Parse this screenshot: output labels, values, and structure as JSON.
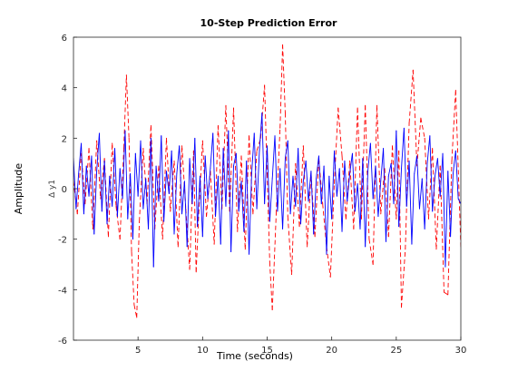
{
  "chart_data": {
    "type": "line",
    "title": "10-Step Prediction Error",
    "xlabel": "Time (seconds)",
    "ylabel": "Amplitude",
    "ylabel_inner": "Δ y1",
    "xlim": [
      0,
      30
    ],
    "ylim": [
      -6,
      6
    ],
    "xticks": [
      5,
      10,
      15,
      20,
      25,
      30
    ],
    "yticks": [
      -6,
      -4,
      -2,
      0,
      2,
      4,
      6
    ],
    "grid": false,
    "legend": "none",
    "series": [
      {
        "color": "#ff0000",
        "style": "dashed",
        "x": [
          0.0,
          0.3,
          0.6,
          0.9,
          1.2,
          1.5,
          1.8,
          2.1,
          2.4,
          2.7,
          3.0,
          3.3,
          3.6,
          3.9,
          4.1,
          4.3,
          4.5,
          4.7,
          4.9,
          5.1,
          5.4,
          5.7,
          6.0,
          6.3,
          6.6,
          6.9,
          7.2,
          7.5,
          7.8,
          8.1,
          8.4,
          8.7,
          9.0,
          9.3,
          9.5,
          9.7,
          10.0,
          10.3,
          10.6,
          10.9,
          11.2,
          11.5,
          11.8,
          12.1,
          12.4,
          12.7,
          13.0,
          13.3,
          13.6,
          13.9,
          14.2,
          14.5,
          14.8,
          15.0,
          15.2,
          15.4,
          15.7,
          16.0,
          16.2,
          16.4,
          16.6,
          16.9,
          17.2,
          17.5,
          17.8,
          18.1,
          18.4,
          18.7,
          19.0,
          19.3,
          19.6,
          19.9,
          20.2,
          20.5,
          20.8,
          21.1,
          21.4,
          21.7,
          22.0,
          22.3,
          22.6,
          22.9,
          23.2,
          23.5,
          23.8,
          24.1,
          24.4,
          24.7,
          25.0,
          25.2,
          25.4,
          25.7,
          26.0,
          26.3,
          26.6,
          26.9,
          27.2,
          27.5,
          27.8,
          28.1,
          28.4,
          28.7,
          29.0,
          29.3,
          29.6,
          30.0
        ],
        "y": [
          0.3,
          -1.0,
          1.4,
          -0.6,
          1.6,
          -1.6,
          1.9,
          -0.4,
          1.2,
          -1.9,
          1.8,
          -0.7,
          -2.0,
          1.6,
          4.5,
          2.0,
          -2.5,
          -4.6,
          -5.1,
          -1.3,
          1.6,
          -0.6,
          2.5,
          -1.6,
          0.9,
          -2.0,
          2.0,
          -0.9,
          1.1,
          -2.3,
          1.7,
          -0.8,
          -3.2,
          1.5,
          -3.3,
          -1.0,
          1.9,
          -1.1,
          0.7,
          -2.2,
          2.5,
          -0.8,
          3.3,
          -0.9,
          3.2,
          -1.7,
          1.3,
          -2.4,
          2.1,
          -1.0,
          1.5,
          2.0,
          4.1,
          0.6,
          -2.9,
          -4.8,
          -1.0,
          2.4,
          5.7,
          3.0,
          -1.1,
          -3.4,
          1.0,
          -1.5,
          1.7,
          -2.3,
          0.6,
          -1.9,
          1.2,
          -0.6,
          -2.3,
          -3.5,
          0.2,
          3.2,
          1.3,
          -1.2,
          1.1,
          -1.6,
          3.2,
          -1.2,
          3.3,
          -2.0,
          -3.0,
          3.3,
          -1.0,
          0.8,
          -1.9,
          1.7,
          -1.2,
          1.5,
          -4.7,
          -2.4,
          2.6,
          4.7,
          0.9,
          2.8,
          2.0,
          -1.2,
          1.6,
          -2.4,
          0.9,
          -4.1,
          -4.2,
          1.1,
          3.9,
          -2.3
        ]
      },
      {
        "color": "#0000ff",
        "style": "solid",
        "x": [
          0.0,
          0.2,
          0.4,
          0.6,
          0.8,
          1.0,
          1.2,
          1.4,
          1.6,
          1.8,
          2.0,
          2.2,
          2.4,
          2.6,
          2.8,
          3.0,
          3.2,
          3.4,
          3.6,
          3.8,
          4.0,
          4.2,
          4.4,
          4.6,
          4.8,
          5.0,
          5.2,
          5.4,
          5.6,
          5.8,
          6.0,
          6.2,
          6.4,
          6.6,
          6.8,
          7.0,
          7.2,
          7.4,
          7.6,
          7.8,
          8.0,
          8.2,
          8.4,
          8.6,
          8.8,
          9.0,
          9.2,
          9.4,
          9.6,
          9.8,
          10.0,
          10.2,
          10.4,
          10.6,
          10.8,
          11.0,
          11.2,
          11.4,
          11.6,
          11.8,
          12.0,
          12.2,
          12.4,
          12.6,
          12.8,
          13.0,
          13.2,
          13.4,
          13.6,
          13.8,
          14.0,
          14.2,
          14.4,
          14.6,
          14.8,
          15.0,
          15.2,
          15.4,
          15.6,
          15.8,
          16.0,
          16.2,
          16.4,
          16.6,
          16.8,
          17.0,
          17.2,
          17.4,
          17.6,
          17.8,
          18.0,
          18.2,
          18.4,
          18.6,
          18.8,
          19.0,
          19.2,
          19.4,
          19.6,
          19.8,
          20.0,
          20.2,
          20.4,
          20.6,
          20.8,
          21.0,
          21.2,
          21.4,
          21.6,
          21.8,
          22.0,
          22.2,
          22.4,
          22.6,
          22.8,
          23.0,
          23.2,
          23.4,
          23.6,
          23.8,
          24.0,
          24.2,
          24.4,
          24.6,
          24.8,
          25.0,
          25.2,
          25.4,
          25.6,
          25.8,
          26.0,
          26.2,
          26.4,
          26.6,
          26.8,
          27.0,
          27.2,
          27.4,
          27.6,
          27.8,
          28.0,
          28.2,
          28.4,
          28.6,
          28.8,
          29.0,
          29.2,
          29.4,
          29.6,
          29.8,
          30.0
        ],
        "y": [
          1.2,
          -0.8,
          0.6,
          1.8,
          -1.0,
          0.9,
          -0.3,
          1.3,
          -1.8,
          0.7,
          2.2,
          -0.9,
          1.1,
          -1.4,
          0.5,
          -0.7,
          1.6,
          -1.1,
          0.8,
          -0.4,
          2.3,
          -1.2,
          0.6,
          -2.0,
          1.4,
          -0.3,
          1.9,
          -0.8,
          0.4,
          -1.6,
          2.0,
          -3.1,
          0.9,
          -0.5,
          2.1,
          -1.3,
          0.7,
          -0.2,
          1.5,
          -1.8,
          0.6,
          1.7,
          -1.0,
          0.3,
          -2.3,
          1.2,
          -0.6,
          2.0,
          -1.5,
          0.5,
          -1.9,
          1.3,
          -0.4,
          0.8,
          2.2,
          -1.1,
          0.5,
          -2.2,
          1.6,
          -0.7,
          2.3,
          -2.5,
          0.9,
          1.4,
          -0.9,
          0.3,
          -1.7,
          1.1,
          -2.6,
          0.6,
          2.2,
          -0.8,
          1.5,
          3.0,
          -0.6,
          1.7,
          -1.3,
          0.4,
          2.1,
          -0.9,
          0.8,
          -1.6,
          1.2,
          1.9,
          -1.0,
          0.5,
          -0.7,
          1.6,
          -1.4,
          0.3,
          1.1,
          -0.5,
          0.7,
          -1.8,
          0.4,
          1.3,
          -0.6,
          0.9,
          -2.6,
          0.5,
          -1.2,
          1.5,
          -0.3,
          0.8,
          -1.7,
          1.1,
          -0.5,
          0.6,
          1.4,
          -0.9,
          0.2,
          -1.6,
          1.2,
          -2.3,
          0.7,
          1.8,
          -0.4,
          0.9,
          -1.1,
          0.3,
          1.6,
          -2.1,
          0.5,
          1.0,
          -0.6,
          2.3,
          -1.5,
          0.8,
          2.4,
          -0.7,
          1.1,
          -2.2,
          0.6,
          1.3,
          -0.8,
          0.4,
          -1.6,
          1.0,
          2.1,
          -0.9,
          0.5,
          1.2,
          -0.3,
          1.4,
          -3.1,
          0.7,
          -1.9,
          0.6,
          1.5,
          -0.4,
          -0.6
        ]
      }
    ]
  }
}
